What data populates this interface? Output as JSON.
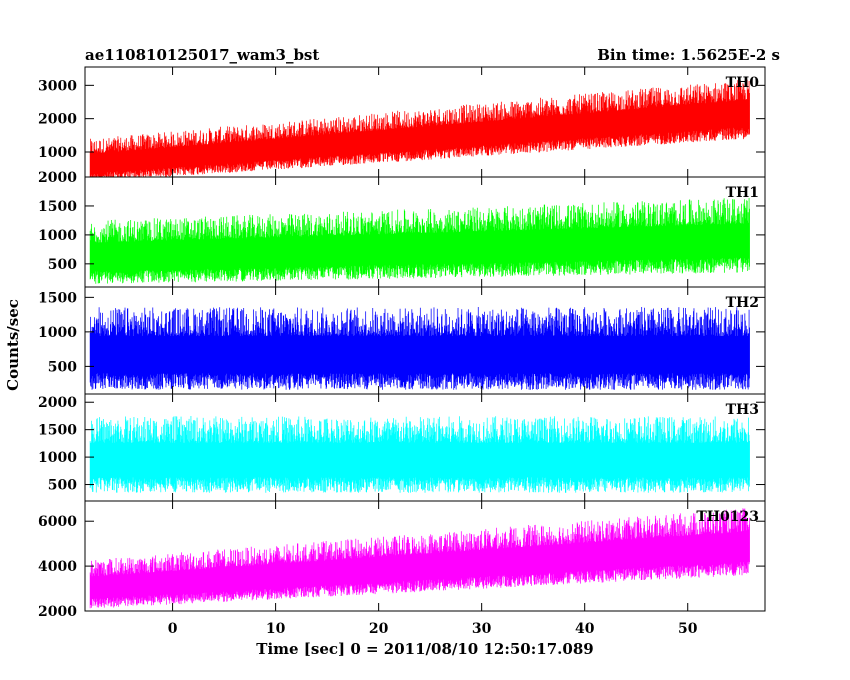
{
  "header": {
    "left_title": "ae110810125017_wam3_bst",
    "right_title": "Bin time: 1.5625E-2 s"
  },
  "chart_data": {
    "type": "line",
    "xlabel": "Time [sec] 0 = 2011/08/10 12:50:17.089",
    "ylabel": "Counts/sec",
    "xlim": [
      -8.5,
      57.5
    ],
    "data_x_range": [
      -8,
      56
    ],
    "x_ticks": [
      0,
      10,
      20,
      30,
      40,
      50
    ],
    "x_tick_labels": [
      "0",
      "10",
      "20",
      "30",
      "40",
      "50"
    ],
    "grid": false,
    "panels": [
      {
        "label": "TH0",
        "color": "#ff0000",
        "ylim": [
          250,
          3550
        ],
        "y_ticks": [
          1000,
          2000,
          3000
        ],
        "y_tick_labels": [
          "1000",
          "2000",
          "3000"
        ],
        "trend": {
          "x": [
            -8,
            56
          ],
          "mean": [
            750,
            2300
          ],
          "spread": [
            650,
            900
          ]
        }
      },
      {
        "label": "TH1",
        "color": "#00ff00",
        "ylim": [
          100,
          2000
        ],
        "y_tick_labels": [
          "500",
          "1000",
          "1500",
          "2000"
        ],
        "y_ticks": [
          500,
          1000,
          1500,
          2000
        ],
        "trend": {
          "x": [
            -8,
            56
          ],
          "mean": [
            700,
            1000
          ],
          "spread": [
            550,
            650
          ]
        }
      },
      {
        "label": "TH2",
        "color": "#0000ff",
        "ylim": [
          100,
          1650
        ],
        "y_ticks": [
          500,
          1000,
          1500
        ],
        "y_tick_labels": [
          "500",
          "1000",
          "1500"
        ],
        "trend": {
          "x": [
            -8,
            56
          ],
          "mean": [
            760,
            760
          ],
          "spread": [
            600,
            600
          ]
        }
      },
      {
        "label": "TH3",
        "color": "#00ffff",
        "ylim": [
          200,
          2150
        ],
        "y_ticks": [
          500,
          1000,
          1500,
          2000
        ],
        "y_tick_labels": [
          "500",
          "1000",
          "1500",
          "2000"
        ],
        "trend": {
          "x": [
            -8,
            56
          ],
          "mean": [
            1050,
            1050
          ],
          "spread": [
            700,
            700
          ]
        }
      },
      {
        "label": "TH0123",
        "color": "#ff00ff",
        "ylim": [
          2000,
          6900
        ],
        "y_ticks": [
          2000,
          4000,
          6000
        ],
        "y_tick_labels": [
          "2000",
          "4000",
          "6000"
        ],
        "trend": {
          "x": [
            -8,
            56
          ],
          "mean": [
            3200,
            5100
          ],
          "spread": [
            1100,
            1500
          ]
        }
      }
    ]
  }
}
